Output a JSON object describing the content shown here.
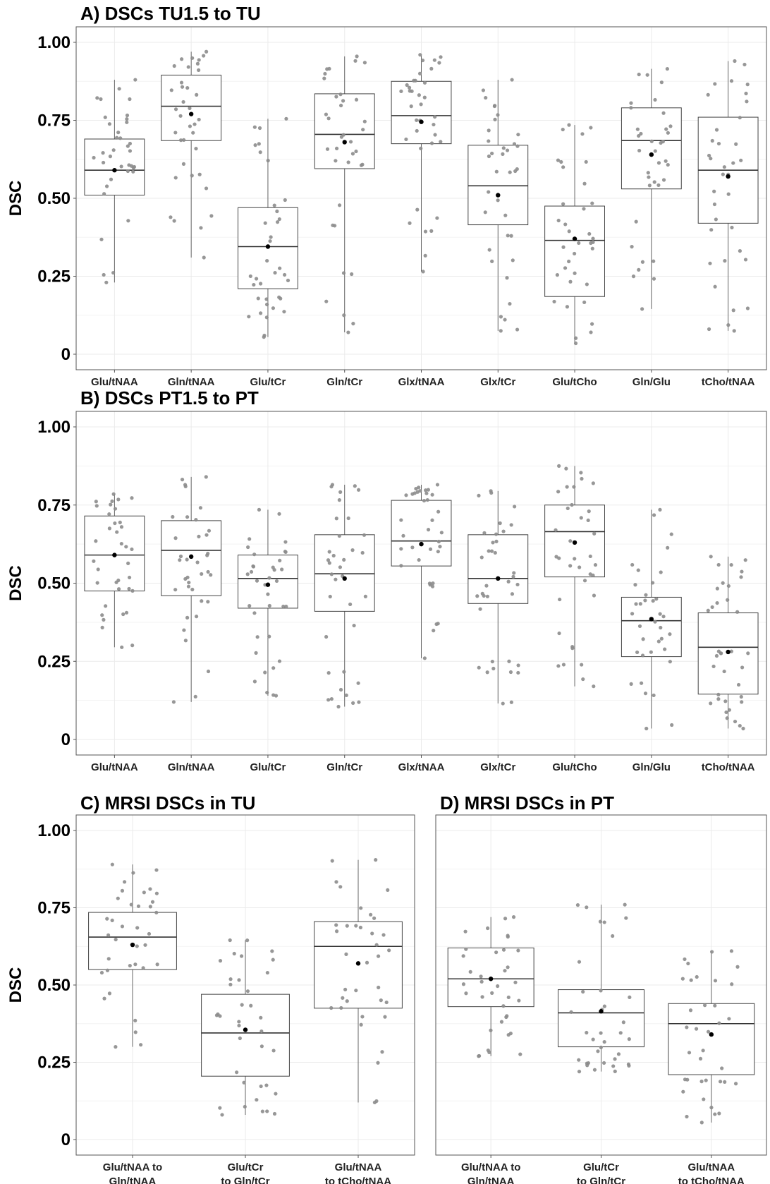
{
  "chart_data": [
    {
      "panel": "A",
      "type": "box",
      "title": "A) DSCs TU1.5 to TU",
      "ylabel": "DSC",
      "ylim": [
        0,
        1.0
      ],
      "yticks": [
        "0",
        "0.25",
        "0.50",
        "0.75",
        "1.00"
      ],
      "categories": [
        "Glu/tNAA",
        "Gln/tNAA",
        "Glu/tCr",
        "Gln/tCr",
        "Glx/tNAA",
        "Glx/tCr",
        "Glu/tCho",
        "Gln/Glu",
        "tCho/tNAA"
      ],
      "boxes": [
        {
          "q1": 0.51,
          "median": 0.59,
          "q3": 0.69,
          "min": 0.23,
          "max": 0.88,
          "mean": 0.59
        },
        {
          "q1": 0.685,
          "median": 0.795,
          "q3": 0.895,
          "min": 0.31,
          "max": 0.97,
          "mean": 0.77
        },
        {
          "q1": 0.21,
          "median": 0.345,
          "q3": 0.47,
          "min": 0.055,
          "max": 0.755,
          "mean": 0.345
        },
        {
          "q1": 0.595,
          "median": 0.705,
          "q3": 0.835,
          "min": 0.07,
          "max": 0.955,
          "mean": 0.68
        },
        {
          "q1": 0.675,
          "median": 0.765,
          "q3": 0.875,
          "min": 0.265,
          "max": 0.96,
          "mean": 0.745
        },
        {
          "q1": 0.415,
          "median": 0.54,
          "q3": 0.67,
          "min": 0.075,
          "max": 0.88,
          "mean": 0.51
        },
        {
          "q1": 0.185,
          "median": 0.365,
          "q3": 0.475,
          "min": 0.035,
          "max": 0.735,
          "mean": 0.37
        },
        {
          "q1": 0.53,
          "median": 0.685,
          "q3": 0.79,
          "min": 0.145,
          "max": 0.915,
          "mean": 0.64
        },
        {
          "q1": 0.42,
          "median": 0.59,
          "q3": 0.76,
          "min": 0.075,
          "max": 0.94,
          "mean": 0.57
        }
      ]
    },
    {
      "panel": "B",
      "type": "box",
      "title": "B) DSCs PT1.5 to PT",
      "ylabel": "DSC",
      "ylim": [
        0,
        1.0
      ],
      "yticks": [
        "0",
        "0.25",
        "0.50",
        "0.75",
        "1.00"
      ],
      "categories": [
        "Glu/tNAA",
        "Gln/tNAA",
        "Glu/tCr",
        "Gln/tCr",
        "Glx/tNAA",
        "Glx/tCr",
        "Glu/tCho",
        "Gln/Glu",
        "tCho/tNAA"
      ],
      "boxes": [
        {
          "q1": 0.475,
          "median": 0.59,
          "q3": 0.715,
          "min": 0.295,
          "max": 0.785,
          "mean": 0.59
        },
        {
          "q1": 0.46,
          "median": 0.605,
          "q3": 0.7,
          "min": 0.12,
          "max": 0.84,
          "mean": 0.585
        },
        {
          "q1": 0.42,
          "median": 0.515,
          "q3": 0.59,
          "min": 0.14,
          "max": 0.735,
          "mean": 0.495
        },
        {
          "q1": 0.41,
          "median": 0.53,
          "q3": 0.655,
          "min": 0.105,
          "max": 0.815,
          "mean": 0.515
        },
        {
          "q1": 0.555,
          "median": 0.635,
          "q3": 0.765,
          "min": 0.26,
          "max": 0.815,
          "mean": 0.625
        },
        {
          "q1": 0.435,
          "median": 0.515,
          "q3": 0.655,
          "min": 0.115,
          "max": 0.795,
          "mean": 0.515
        },
        {
          "q1": 0.52,
          "median": 0.665,
          "q3": 0.75,
          "min": 0.17,
          "max": 0.875,
          "mean": 0.63
        },
        {
          "q1": 0.265,
          "median": 0.38,
          "q3": 0.455,
          "min": 0.035,
          "max": 0.735,
          "mean": 0.385
        },
        {
          "q1": 0.145,
          "median": 0.295,
          "q3": 0.405,
          "min": 0.035,
          "max": 0.585,
          "mean": 0.28
        }
      ]
    },
    {
      "panel": "C",
      "type": "box",
      "title": "C) MRSI DSCs in TU",
      "ylabel": "DSC",
      "ylim": [
        0,
        1.0
      ],
      "yticks": [
        "0",
        "0.25",
        "0.50",
        "0.75",
        "1.00"
      ],
      "categories": [
        [
          "Glu/tNAA to",
          "Gln/tNAA"
        ],
        [
          "Glu/tCr",
          "to Gln/tCr"
        ],
        [
          "Glu/tNAA",
          "to tCho/tNAA"
        ]
      ],
      "boxes": [
        {
          "q1": 0.55,
          "median": 0.655,
          "q3": 0.735,
          "min": 0.3,
          "max": 0.89,
          "mean": 0.63
        },
        {
          "q1": 0.205,
          "median": 0.345,
          "q3": 0.47,
          "min": 0.08,
          "max": 0.645,
          "mean": 0.355
        },
        {
          "q1": 0.425,
          "median": 0.625,
          "q3": 0.705,
          "min": 0.12,
          "max": 0.905,
          "mean": 0.57
        }
      ]
    },
    {
      "panel": "D",
      "type": "box",
      "title": "D) MRSI DSCs in PT",
      "ylabel": "",
      "ylim": [
        0,
        1.0
      ],
      "yticks": [],
      "categories": [
        [
          "Glu/tNAA to",
          "Gln/tNAA"
        ],
        [
          "Glu/tCr",
          "to Gln/tCr"
        ],
        [
          "Glu/tNAA",
          "to tCho/tNAA"
        ]
      ],
      "boxes": [
        {
          "q1": 0.43,
          "median": 0.52,
          "q3": 0.62,
          "min": 0.27,
          "max": 0.72,
          "mean": 0.52
        },
        {
          "q1": 0.3,
          "median": 0.41,
          "q3": 0.485,
          "min": 0.22,
          "max": 0.76,
          "mean": 0.415
        },
        {
          "q1": 0.21,
          "median": 0.375,
          "q3": 0.44,
          "min": 0.055,
          "max": 0.61,
          "mean": 0.34
        }
      ]
    }
  ]
}
